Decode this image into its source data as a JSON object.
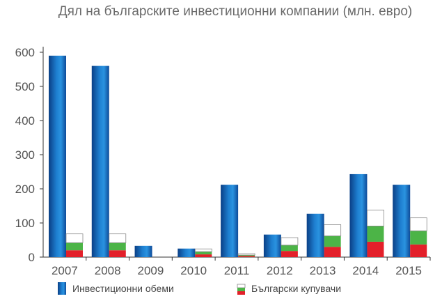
{
  "chart_data": {
    "type": "bar",
    "title": "Дял на българските инвестиционни компании (млн. евро)",
    "xlabel": "",
    "ylabel": "",
    "ylim": [
      0,
      600
    ],
    "yticks": [
      0,
      100,
      200,
      300,
      400,
      500,
      600
    ],
    "categories": [
      "2007",
      "2008",
      "2009",
      "2010",
      "2011",
      "2012",
      "2013",
      "2014",
      "2015"
    ],
    "series": [
      {
        "name": "Инвестиционни обеми",
        "values": [
          590,
          560,
          33,
          25,
          212,
          66,
          127,
          243,
          212
        ],
        "color": "#1565b5"
      },
      {
        "name": "Български купувачи",
        "stack": {
          "red": [
            20,
            20,
            0,
            8,
            3,
            18,
            30,
            45,
            37
          ],
          "green": [
            22,
            22,
            0,
            8,
            3,
            17,
            32,
            46,
            40
          ],
          "white": [
            26,
            26,
            0,
            8,
            4,
            22,
            33,
            47,
            38
          ]
        },
        "colors": {
          "red": "#e3202a",
          "green": "#4cb447",
          "white": "#ffffff",
          "stroke": "#888888"
        }
      }
    ],
    "legend_position": "bottom",
    "grid": false
  },
  "legend": {
    "items": [
      {
        "label": "Инвестиционни обеми"
      },
      {
        "label": "Български купувачи"
      }
    ]
  }
}
